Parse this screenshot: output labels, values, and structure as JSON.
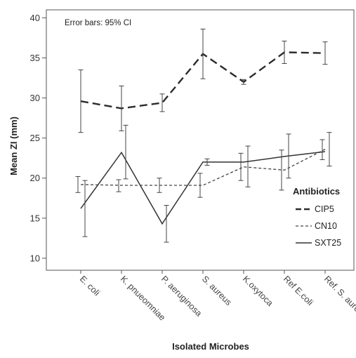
{
  "chart_data": {
    "type": "line",
    "title": "",
    "note": "Error bars: 95% CI",
    "xlabel": "Isolated Microbes",
    "ylabel": "Mean ZI (mm)",
    "categories": [
      "E. coli",
      "K. pnueomniae",
      "P. aeruginosa",
      "S. aureus",
      "K.oxytoca",
      "Ref E.coli",
      "Ref. S. aureus"
    ],
    "yticks": [
      10,
      15,
      20,
      25,
      30,
      35,
      40
    ],
    "ylim": [
      8.5,
      41
    ],
    "grid": false,
    "legend": {
      "title": "Antibiotics",
      "position": "right",
      "entries": [
        "CIP5",
        "CN10",
        "SXT25"
      ]
    },
    "series": [
      {
        "name": "CIP5",
        "style": "long-dash",
        "values": [
          29.6,
          28.7,
          29.4,
          35.5,
          32.0,
          35.7,
          35.6
        ],
        "ci_low": [
          25.7,
          25.9,
          28.3,
          32.4,
          31.7,
          34.3,
          34.2
        ],
        "ci_high": [
          33.5,
          31.5,
          30.5,
          38.6,
          32.3,
          37.1,
          37.0
        ]
      },
      {
        "name": "CN10",
        "style": "short-dash",
        "values": [
          19.2,
          19.1,
          19.1,
          19.1,
          21.4,
          21.0,
          23.6
        ],
        "ci_low": [
          18.2,
          18.3,
          18.2,
          17.6,
          19.7,
          18.5,
          22.3
        ],
        "ci_high": [
          20.2,
          19.8,
          20.0,
          20.6,
          23.1,
          23.5,
          24.8
        ]
      },
      {
        "name": "SXT25",
        "style": "solid",
        "values": [
          16.2,
          23.2,
          14.3,
          22.0,
          22.0,
          22.7,
          23.3
        ],
        "ci_low": [
          12.7,
          19.9,
          12.0,
          21.6,
          18.9,
          20.0,
          21.5
        ],
        "ci_high": [
          19.7,
          26.6,
          16.6,
          22.4,
          24.0,
          25.5,
          25.7
        ]
      }
    ]
  }
}
